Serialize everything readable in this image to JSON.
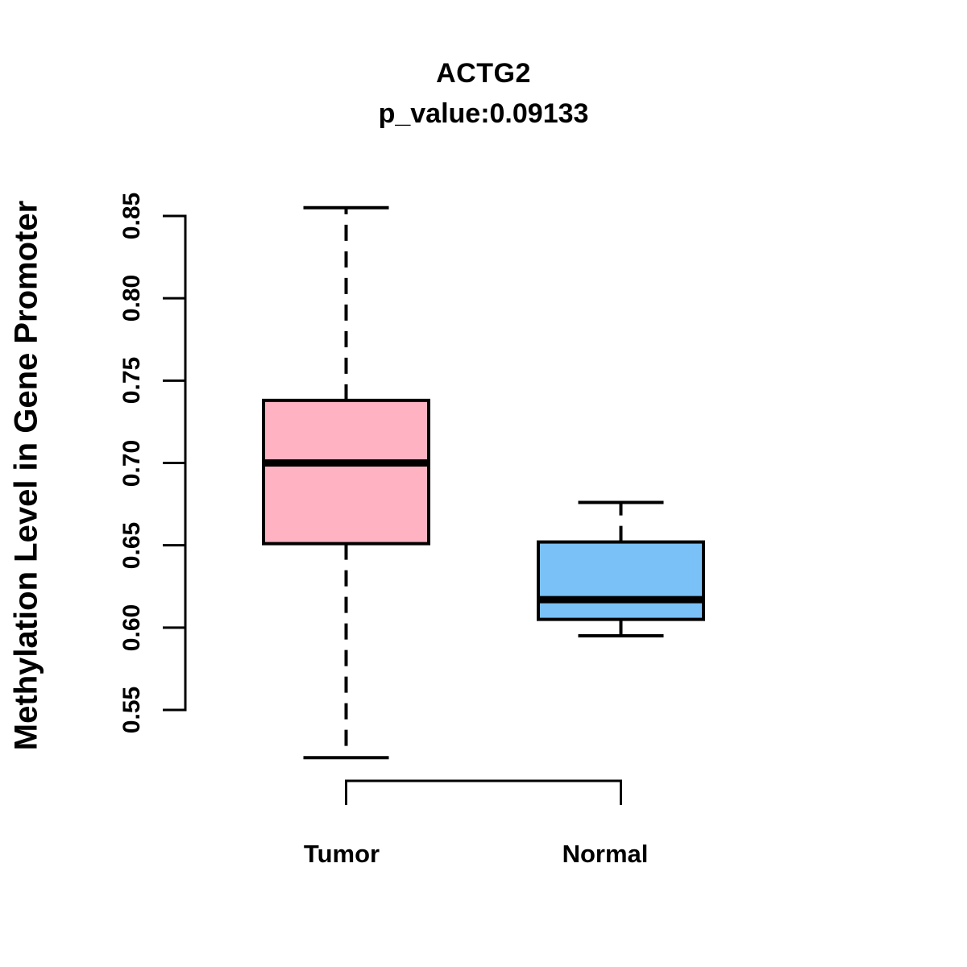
{
  "figure": {
    "background": "#FFFFFF",
    "text_color": "#000000"
  },
  "chart_data": {
    "type": "boxplot",
    "title": "ACTG2",
    "subtitle": "p_value:0.09133",
    "ylabel": "Methylation Level in Gene Promoter",
    "xlabel": "",
    "categories": [
      "Tumor",
      "Normal"
    ],
    "yticks": [
      "0.55",
      "0.60",
      "0.65",
      "0.70",
      "0.75",
      "0.80",
      "0.85"
    ],
    "ylim": [
      0.52,
      0.86
    ],
    "grid": false,
    "legend": "none",
    "comparison_bracket": true,
    "series": [
      {
        "name": "Tumor",
        "color": "#FFB3C2",
        "whisker_low": 0.521,
        "q1": 0.651,
        "median": 0.7,
        "q3": 0.738,
        "whisker_high": 0.855
      },
      {
        "name": "Normal",
        "color": "#7AC1F7",
        "whisker_low": 0.595,
        "q1": 0.605,
        "median": 0.617,
        "q3": 0.652,
        "whisker_high": 0.676
      }
    ],
    "colors": {
      "box_border": "#000000",
      "median_line": "#000000",
      "whisker": "#000000",
      "axis": "#000000"
    }
  }
}
